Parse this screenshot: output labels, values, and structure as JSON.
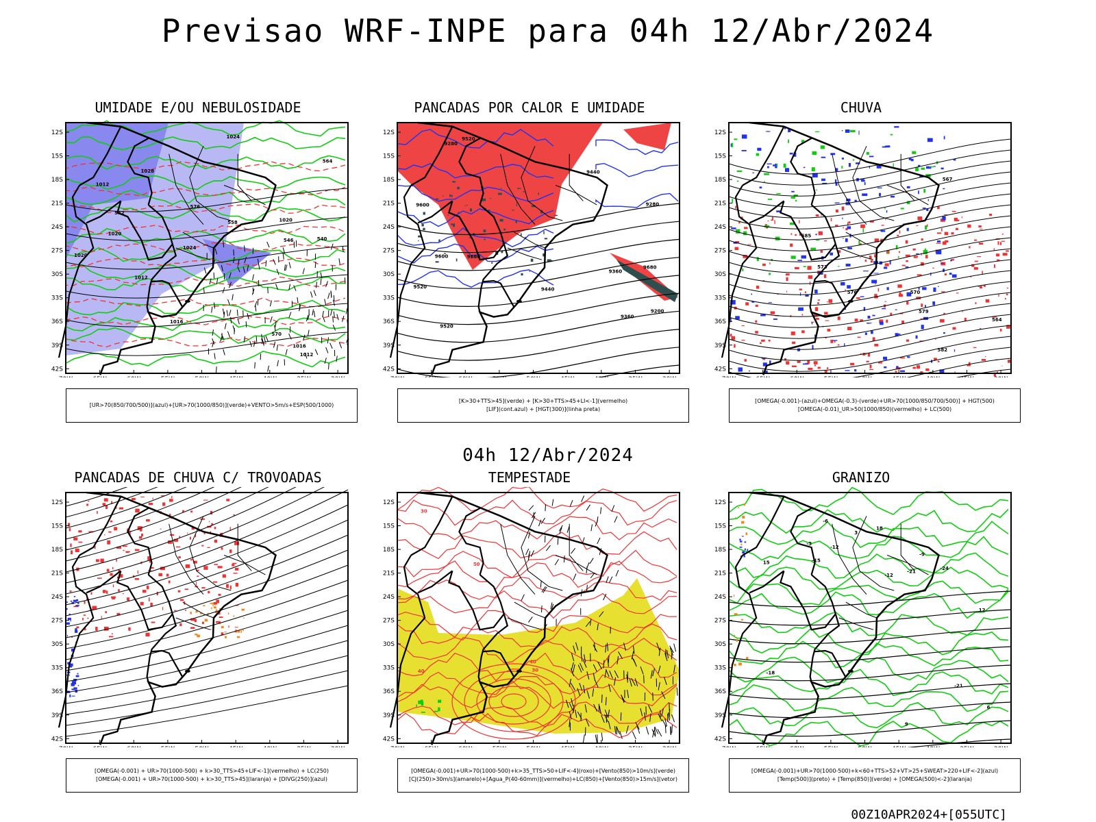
{
  "title": "Previsao WRF-INPE  para 04h 12/Abr/2024",
  "row2_label": "04h 12/Abr/2024",
  "footer": "00Z10APR2024+[055UTC]",
  "lat_labels": [
    "12S",
    "15S",
    "18S",
    "21S",
    "24S",
    "27S",
    "30S",
    "33S",
    "36S",
    "39S",
    "42S"
  ],
  "lon_labels": [
    "70W",
    "65W",
    "60W",
    "55W",
    "50W",
    "45W",
    "40W",
    "35W",
    "30W"
  ],
  "colors": {
    "blue": "#2233ee",
    "green": "#11cc11",
    "red": "#ee3333",
    "orange": "#ee8822",
    "yellow": "#e8e030",
    "teal": "#2f4f4f",
    "lavender": "#8888ee"
  },
  "chart_data": [
    {
      "id": "p1",
      "type": "contour-map",
      "title": "UMIDADE E/OU NEBULOSIDADE",
      "legend": [
        "[UR>70(850/700/500)](azul)+[UR>70(1000/850)](verde)+VENTO>5m/s+ESP(500/1000)"
      ],
      "contour_labels": [
        "1012",
        "1012",
        "1016",
        "1020",
        "1020",
        "1024",
        "1028",
        "1024",
        "1020",
        "1016",
        "1012",
        "576",
        "570",
        "564",
        "558",
        "552",
        "546",
        "540"
      ]
    },
    {
      "id": "p2",
      "type": "contour-map",
      "title": "PANCADAS POR CALOR E UMIDADE",
      "legend": [
        "[K>30+TTS>45](verde) + [K>30+TTS>45+LI<-1](vermelho)",
        "[LIF](cont.azul) + [HGT(300)](linha preta)"
      ],
      "contour_labels": [
        "9680",
        "9680",
        "9600",
        "9600",
        "9520",
        "9520",
        "9520",
        "9440",
        "9440",
        "9360",
        "9360",
        "9280",
        "9280",
        "9200"
      ]
    },
    {
      "id": "p3",
      "type": "contour-map",
      "title": "CHUVA",
      "legend": [
        "[OMEGA(-0.001)-(azul)+OMEGA(-0.3)-(verde)+UR>70(1000/850/700/500)] + HGT(500)",
        "[OMEGA(-0.01)_UR>50(1000/850)(vermelho) + LC(500)"
      ],
      "contour_labels": [
        "585",
        "582",
        "579",
        "576",
        "573",
        "570",
        "567",
        "564"
      ]
    },
    {
      "id": "p4",
      "type": "streamline-map",
      "title": "PANCADAS DE CHUVA C/ TROVOADAS",
      "legend": [
        "[OMEGA(-0.001) + UR>70(1000-500) + k>30_TTS>45+LIF<-1](vermelho) + LC(250)",
        "[OMEGA(-0.001) + UR>70(1000-500) + k>30_TTS>45](laranja) + [DIVG(250)](azul)"
      ]
    },
    {
      "id": "p5",
      "type": "contour-map",
      "title": "TEMPESTADE",
      "legend": [
        "[OMEGA(-0.001)+UR>70(1000-500)+k>35_TTS>50+LIF<-4](roxo)+[Vento(850)>10m/s](verde)",
        "[CJ(250)>30m/s](amarelo)+[Agua_P(40-60mm)](vermelho)+LC(850)+[Vento(850)>15m/s](vetor)"
      ],
      "contour_labels": [
        "50",
        "40",
        "40",
        "30",
        "30"
      ]
    },
    {
      "id": "p6",
      "type": "contour-map",
      "title": "GRANIZO",
      "legend": [
        "[OMEGA(-0.001)+UR>70(1000-500)+k<60+TTS>52+VT>25+SWEAT>220+LIF<-2](azul)",
        "[Temp(500)](preto) + [Temp(850)](verde) + [OMEGA(500)<-2](laranja)"
      ],
      "contour_labels": [
        "-3",
        "-6",
        "-9",
        "-12",
        "-12",
        "-15",
        "-18",
        "-21",
        "-21",
        "-24",
        "3",
        "6",
        "9",
        "12",
        "15",
        "18"
      ]
    }
  ]
}
